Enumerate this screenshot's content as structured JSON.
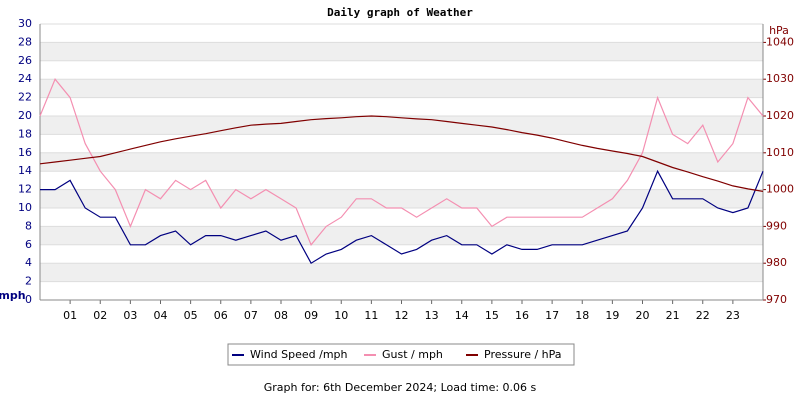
{
  "chart_data": {
    "type": "line",
    "title": "Daily graph of Weather",
    "y_label": "mph",
    "y2_label": "hPa",
    "footer": "Graph for: 6th December 2024; Load time: 0.06 s",
    "x": [
      0,
      0.5,
      1,
      1.5,
      2,
      2.5,
      3,
      3.5,
      4,
      4.5,
      5,
      5.5,
      6,
      6.5,
      7,
      7.5,
      8,
      8.5,
      9,
      9.5,
      10,
      10.5,
      11,
      11.5,
      12,
      12.5,
      13,
      13.5,
      14,
      14.5,
      15,
      15.5,
      16,
      16.5,
      17,
      17.5,
      18,
      18.5,
      19,
      19.5,
      20,
      20.5,
      21,
      21.5,
      22,
      22.5,
      23,
      23.5,
      24
    ],
    "xlim": [
      0,
      24
    ],
    "xticks": [
      {
        "value": 1,
        "label": "01"
      },
      {
        "value": 2,
        "label": "02"
      },
      {
        "value": 3,
        "label": "03"
      },
      {
        "value": 4,
        "label": "04"
      },
      {
        "value": 5,
        "label": "05"
      },
      {
        "value": 6,
        "label": "06"
      },
      {
        "value": 7,
        "label": "07"
      },
      {
        "value": 8,
        "label": "08"
      },
      {
        "value": 9,
        "label": "09"
      },
      {
        "value": 10,
        "label": "10"
      },
      {
        "value": 11,
        "label": "11"
      },
      {
        "value": 12,
        "label": "12"
      },
      {
        "value": 13,
        "label": "13"
      },
      {
        "value": 14,
        "label": "14"
      },
      {
        "value": 15,
        "label": "15"
      },
      {
        "value": 16,
        "label": "16"
      },
      {
        "value": 17,
        "label": "17"
      },
      {
        "value": 18,
        "label": "18"
      },
      {
        "value": 19,
        "label": "19"
      },
      {
        "value": 20,
        "label": "20"
      },
      {
        "value": 21,
        "label": "21"
      },
      {
        "value": 22,
        "label": "22"
      },
      {
        "value": 23,
        "label": "23"
      }
    ],
    "ylim": [
      0,
      30
    ],
    "yticks": [
      0,
      2,
      4,
      6,
      8,
      10,
      12,
      14,
      16,
      18,
      20,
      22,
      24,
      26,
      28,
      30
    ],
    "y2lim": [
      970,
      1045
    ],
    "y2ticks": [
      970,
      980,
      990,
      1000,
      1010,
      1020,
      1030,
      1040
    ],
    "grid": true,
    "series": [
      {
        "name": "Wind Speed /mph",
        "color": "#000080",
        "values": [
          12,
          12,
          13,
          10,
          9,
          9,
          6,
          6,
          7,
          7.5,
          6,
          7,
          7,
          6.5,
          7,
          7.5,
          6.5,
          7,
          4,
          5,
          5.5,
          6.5,
          7,
          6,
          5,
          5.5,
          6.5,
          7,
          6,
          6,
          5,
          6,
          5.5,
          5.5,
          6,
          6,
          6,
          6.5,
          7,
          7.5,
          10,
          14,
          11,
          11,
          11,
          10,
          9.5,
          10,
          14
        ]
      },
      {
        "name": "Gust / mph",
        "color": "#f48fb1",
        "values": [
          20,
          24,
          22,
          17,
          14,
          12,
          8,
          12,
          11,
          13,
          12,
          13,
          10,
          12,
          11,
          12,
          11,
          10,
          6,
          8,
          9,
          11,
          11,
          10,
          10,
          9,
          10,
          11,
          10,
          10,
          8,
          9,
          9,
          9,
          9,
          9,
          9,
          10,
          11,
          13,
          16,
          22,
          18,
          17,
          19,
          15,
          17,
          22,
          20
        ]
      },
      {
        "name": "Pressure / hPa",
        "color": "#800000",
        "axis": "y2",
        "values": [
          1007,
          1007.5,
          1008,
          1008.5,
          1009,
          1010,
          1011,
          1012,
          1013,
          1013.8,
          1014.5,
          1015.2,
          1016,
          1016.8,
          1017.5,
          1017.8,
          1018,
          1018.5,
          1019,
          1019.3,
          1019.5,
          1019.8,
          1020,
          1019.8,
          1019.5,
          1019.2,
          1019,
          1018.5,
          1018,
          1017.5,
          1017,
          1016.3,
          1015.5,
          1014.8,
          1014,
          1013,
          1012,
          1011.2,
          1010.5,
          1009.8,
          1009,
          1007.5,
          1006,
          1004.8,
          1003.5,
          1002.3,
          1001,
          1000.2,
          999.5
        ]
      }
    ]
  }
}
